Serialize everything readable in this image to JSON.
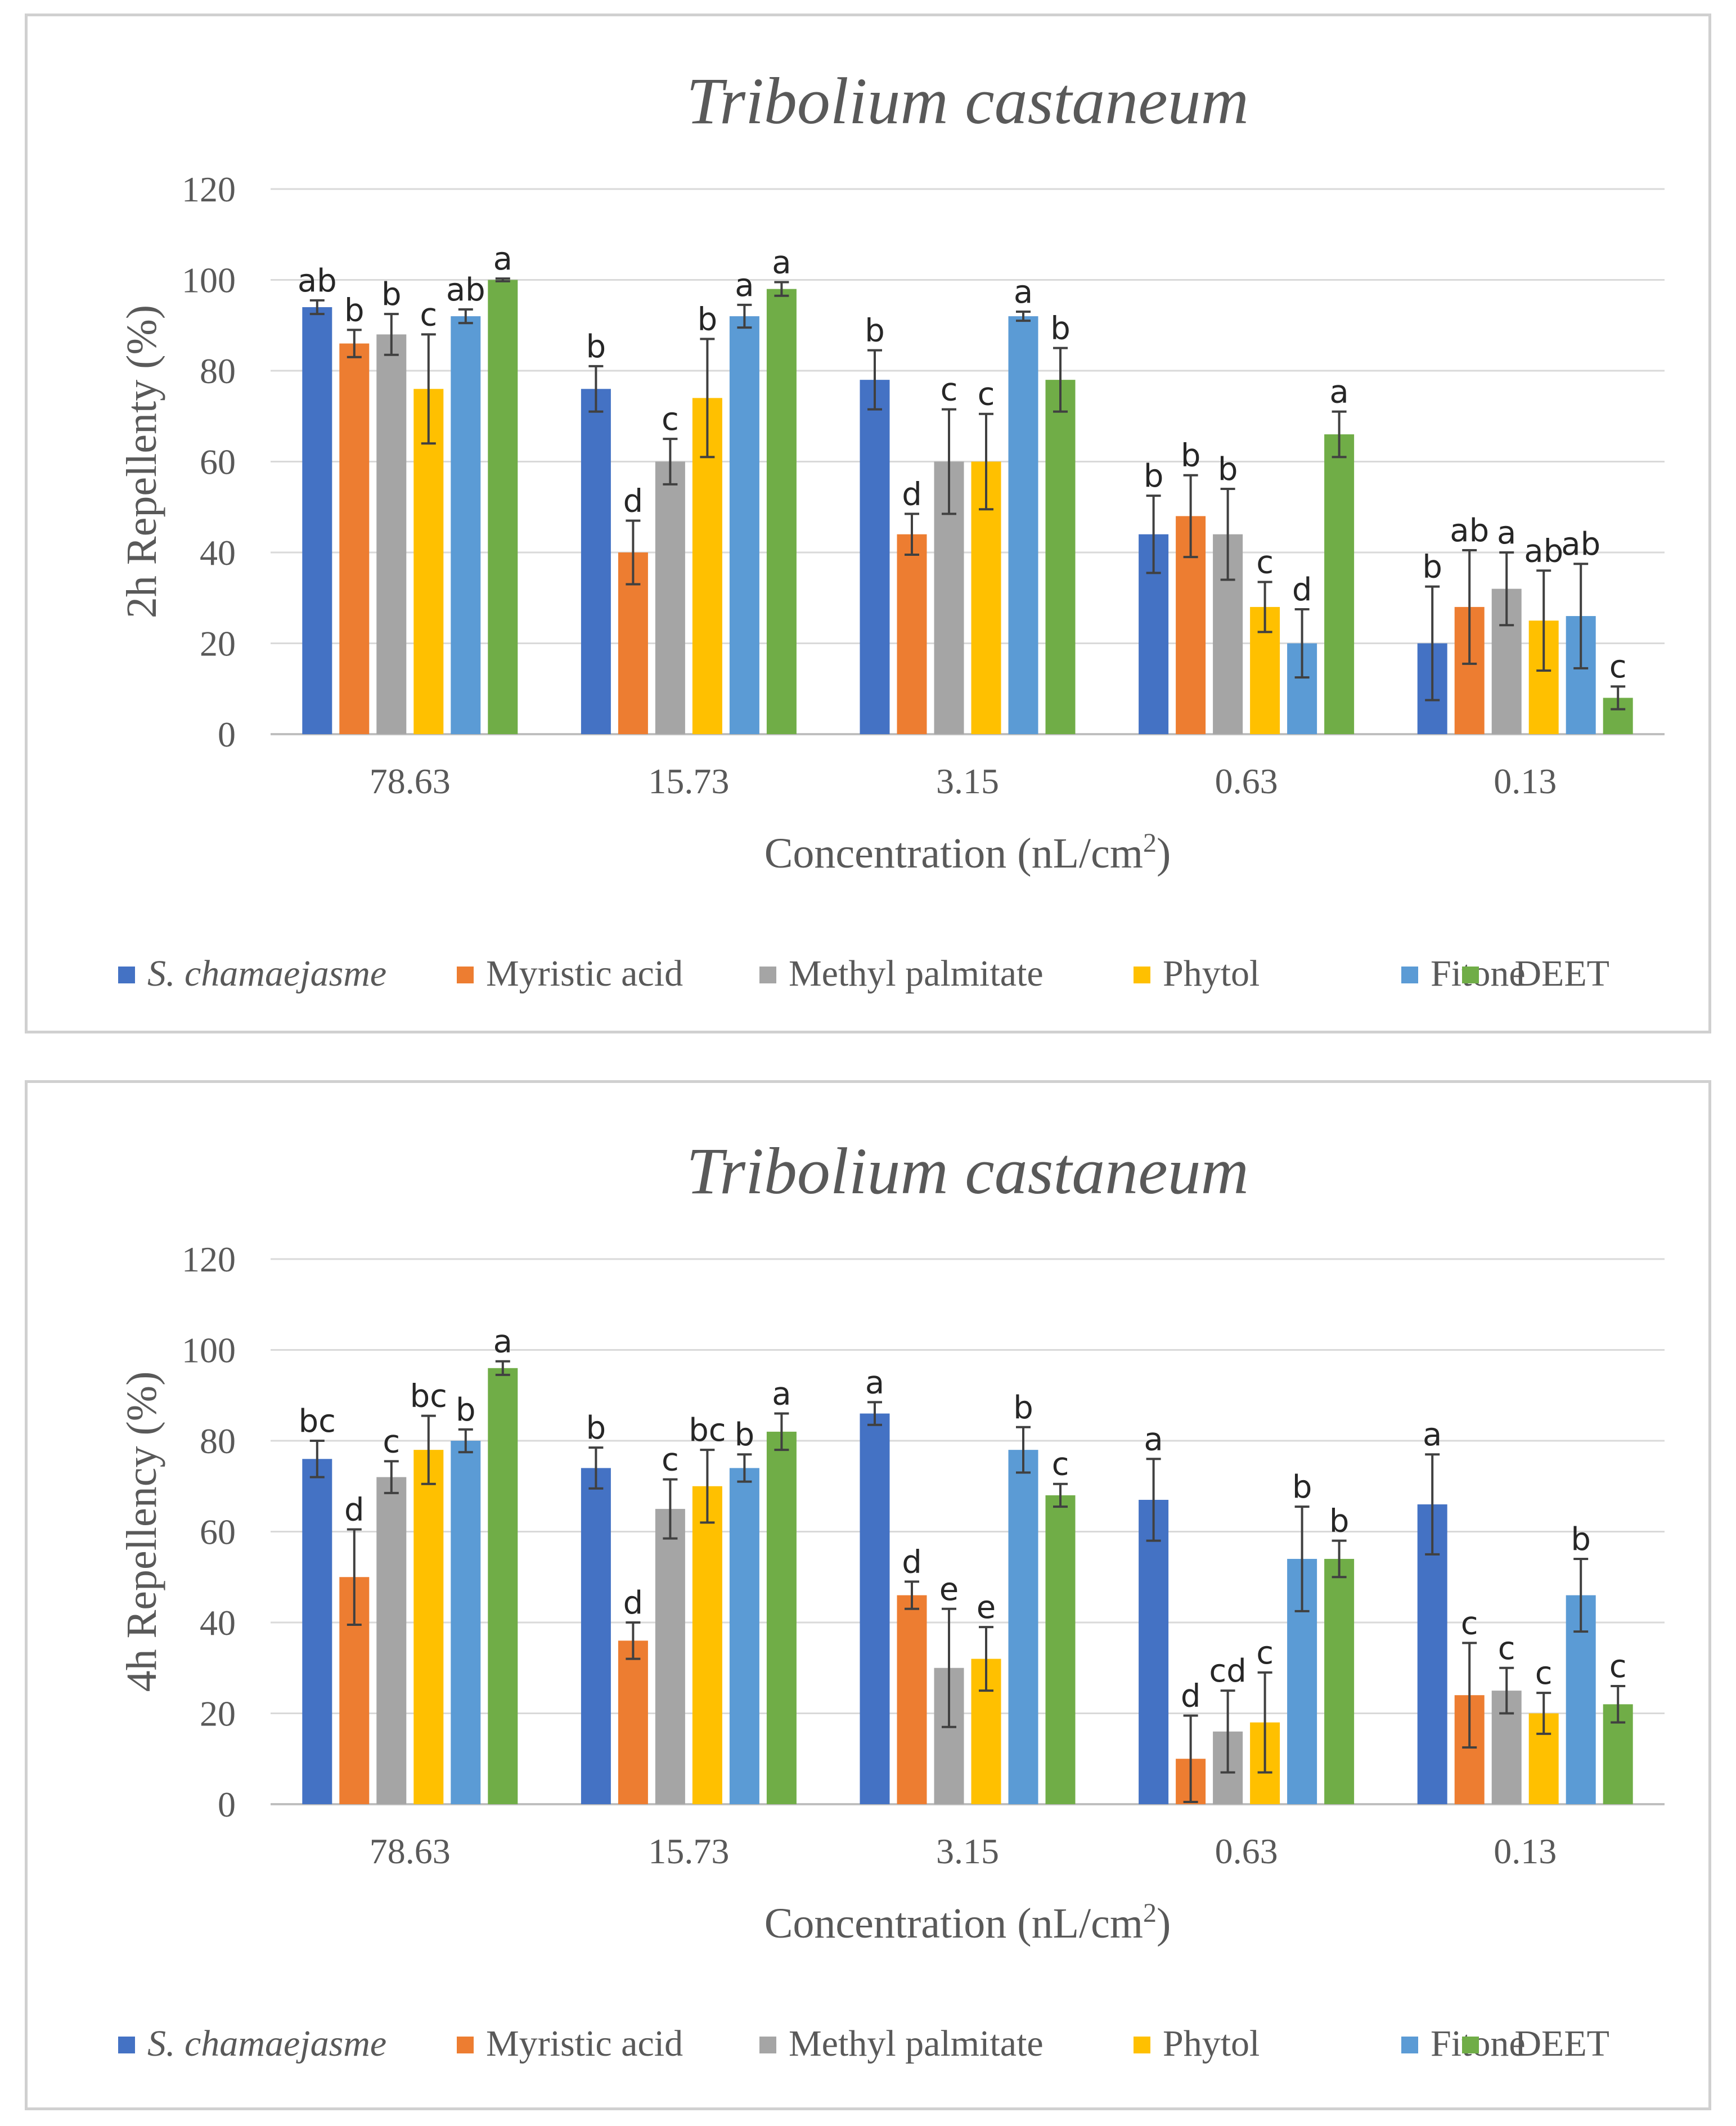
{
  "chart_data": [
    {
      "type": "bar",
      "title": "Tribolium castaneum",
      "xlabel": "Concentration (nL/cm",
      "xlabel_sup": "2",
      "xlabel_suffix": ")",
      "ylabel": "2h Repellenty (%)",
      "ylim": [
        0,
        120
      ],
      "yticks": [
        "0",
        "20",
        "40",
        "60",
        "80",
        "100",
        "120"
      ],
      "grid": true,
      "legend_position": "bottom",
      "categories": [
        "78.63",
        "15.73",
        "3.15",
        "0.63",
        "0.13"
      ],
      "series": [
        {
          "name": "S. chamaejasme",
          "italic": true,
          "color": "#4472C4",
          "values": [
            94,
            76,
            78,
            44,
            20
          ],
          "errors": [
            1.5,
            5,
            6.5,
            8.5,
            12.5
          ],
          "letters": [
            "ab",
            "b",
            "b",
            "b",
            "b"
          ]
        },
        {
          "name": "Myristic acid",
          "color": "#ED7D31",
          "values": [
            86,
            40,
            44,
            48,
            28
          ],
          "errors": [
            3,
            7,
            4.5,
            9,
            12.5
          ],
          "letters": [
            "b",
            "d",
            "d",
            "b",
            "ab"
          ]
        },
        {
          "name": "Methyl palmitate",
          "color": "#A5A5A5",
          "values": [
            88,
            60,
            60,
            44,
            32
          ],
          "errors": [
            4.5,
            5,
            11.5,
            10,
            8
          ],
          "letters": [
            "b",
            "c",
            "c",
            "b",
            "a"
          ]
        },
        {
          "name": "Phytol",
          "color": "#FFC000",
          "values": [
            76,
            74,
            60,
            28,
            25
          ],
          "errors": [
            12,
            13,
            10.5,
            5.5,
            11
          ],
          "letters": [
            "c",
            "b",
            "c",
            "c",
            "ab"
          ]
        },
        {
          "name": "Fitone",
          "color": "#5B9BD5",
          "values": [
            92,
            92,
            92,
            20,
            26
          ],
          "errors": [
            1.5,
            2.5,
            1,
            7.5,
            11.5
          ],
          "letters": [
            "ab",
            "a",
            "a",
            "d",
            "ab"
          ]
        },
        {
          "name": "DEET",
          "color": "#70AD47",
          "values": [
            100,
            98,
            78,
            66,
            8
          ],
          "errors": [
            0.3,
            1.5,
            7,
            5,
            2.5
          ],
          "letters": [
            "a",
            "a",
            "b",
            "a",
            "c"
          ]
        }
      ]
    },
    {
      "type": "bar",
      "title": "Tribolium castaneum",
      "xlabel": "Concentration (nL/cm",
      "xlabel_sup": "2",
      "xlabel_suffix": ")",
      "ylabel": "4h Repellency (%)",
      "ylim": [
        0,
        120
      ],
      "yticks": [
        "0",
        "20",
        "40",
        "60",
        "80",
        "100",
        "120"
      ],
      "grid": true,
      "legend_position": "bottom",
      "categories": [
        "78.63",
        "15.73",
        "3.15",
        "0.63",
        "0.13"
      ],
      "series": [
        {
          "name": "S. chamaejasme",
          "italic": true,
          "color": "#4472C4",
          "values": [
            76,
            74,
            86,
            67,
            66
          ],
          "errors": [
            4,
            4.5,
            2.5,
            9,
            11
          ],
          "letters": [
            "bc",
            "b",
            "a",
            "a",
            "a"
          ]
        },
        {
          "name": "Myristic acid",
          "color": "#ED7D31",
          "values": [
            50,
            36,
            46,
            10,
            24
          ],
          "errors": [
            10.5,
            4,
            3,
            9.5,
            11.5
          ],
          "letters": [
            "d",
            "d",
            "d",
            "d",
            "c"
          ]
        },
        {
          "name": "Methyl palmitate",
          "color": "#A5A5A5",
          "values": [
            72,
            65,
            30,
            16,
            25
          ],
          "errors": [
            3.5,
            6.5,
            13,
            9,
            5
          ],
          "letters": [
            "c",
            "c",
            "e",
            "cd",
            "c"
          ]
        },
        {
          "name": "Phytol",
          "color": "#FFC000",
          "values": [
            78,
            70,
            32,
            18,
            20
          ],
          "errors": [
            7.5,
            8,
            7,
            11,
            4.5
          ],
          "letters": [
            "bc",
            "bc",
            "e",
            "c",
            "c"
          ]
        },
        {
          "name": "Fitone",
          "color": "#5B9BD5",
          "values": [
            80,
            74,
            78,
            54,
            46
          ],
          "errors": [
            2.5,
            3,
            5,
            11.5,
            8
          ],
          "letters": [
            "b",
            "b",
            "b",
            "b",
            "b"
          ]
        },
        {
          "name": "DEET",
          "color": "#70AD47",
          "values": [
            96,
            82,
            68,
            54,
            22
          ],
          "errors": [
            1.5,
            4,
            2.5,
            4,
            4
          ],
          "letters": [
            "a",
            "a",
            "c",
            "b",
            "c"
          ]
        }
      ]
    }
  ]
}
